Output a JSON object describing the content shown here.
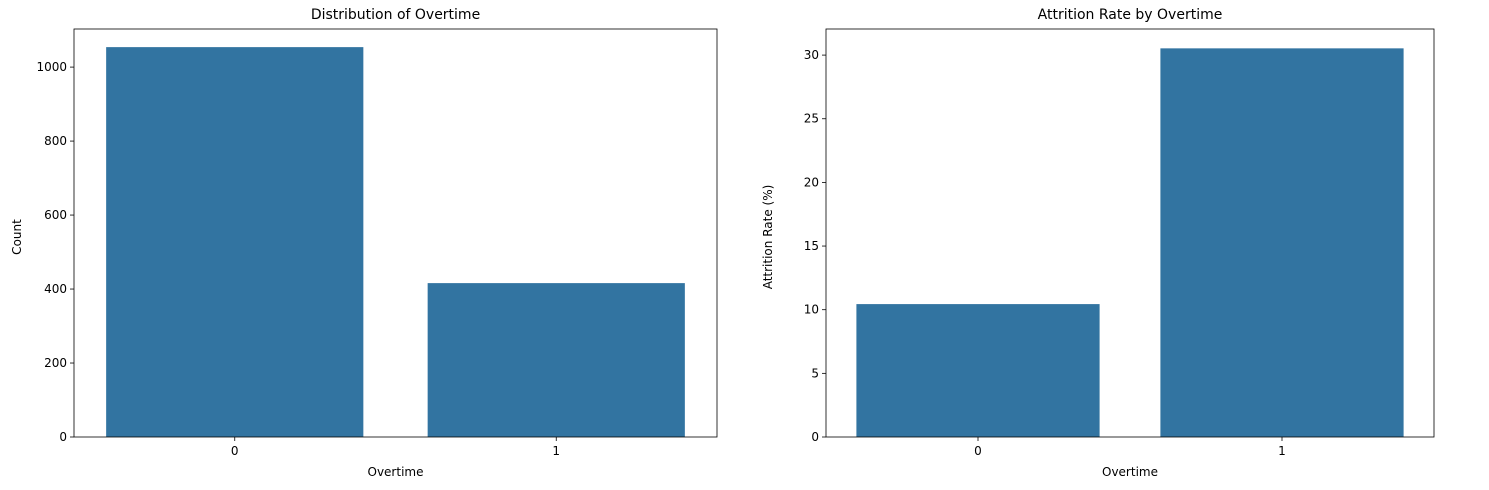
{
  "chart_data": [
    {
      "type": "bar",
      "title": "Distribution of Overtime",
      "xlabel": "Overtime",
      "ylabel": "Count",
      "categories": [
        "0",
        "1"
      ],
      "values": [
        1054,
        416
      ],
      "ylim": [
        0,
        1103
      ],
      "yticks": [
        0,
        200,
        400,
        600,
        800,
        1000
      ],
      "grid": false,
      "color": "#3274a1"
    },
    {
      "type": "bar",
      "title": "Attrition Rate by Overtime",
      "xlabel": "Overtime",
      "ylabel": "Attrition Rate (%)",
      "categories": [
        "0",
        "1"
      ],
      "values": [
        10.44,
        30.53
      ],
      "ylim": [
        0,
        32.05
      ],
      "yticks": [
        0,
        5,
        10,
        15,
        20,
        25,
        30
      ],
      "grid": false,
      "color": "#3274a1"
    }
  ]
}
